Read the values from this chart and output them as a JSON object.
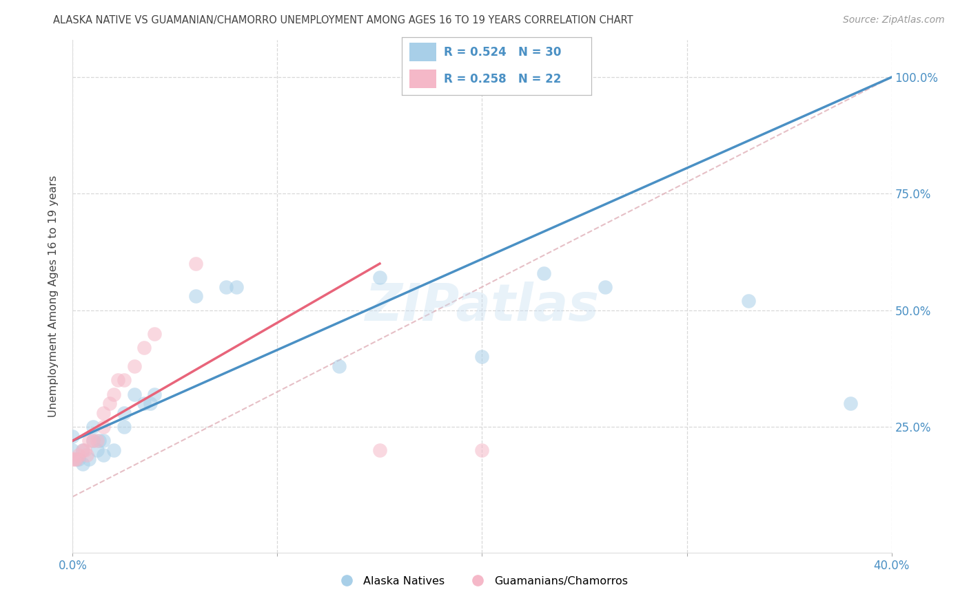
{
  "title": "ALASKA NATIVE VS GUAMANIAN/CHAMORRO UNEMPLOYMENT AMONG AGES 16 TO 19 YEARS CORRELATION CHART",
  "source": "Source: ZipAtlas.com",
  "ylabel": "Unemployment Among Ages 16 to 19 years",
  "xlim": [
    0.0,
    0.4
  ],
  "ylim": [
    -0.02,
    1.08
  ],
  "xticks": [
    0.0,
    0.1,
    0.2,
    0.3,
    0.4
  ],
  "xtick_labels": [
    "0.0%",
    "",
    "",
    "",
    "40.0%"
  ],
  "ytick_labels": [
    "25.0%",
    "50.0%",
    "75.0%",
    "100.0%"
  ],
  "ytick_values": [
    0.25,
    0.5,
    0.75,
    1.0
  ],
  "r_blue": 0.524,
  "n_blue": 30,
  "r_pink": 0.258,
  "n_pink": 22,
  "blue_color": "#a8cfe8",
  "pink_color": "#f5b8c8",
  "blue_line_color": "#4a90c4",
  "pink_line_color": "#e8647a",
  "tick_color": "#4a90c4",
  "title_color": "#444444",
  "source_color": "#999999",
  "grid_color": "#d8d8d8",
  "watermark": "ZIPatlas",
  "alaska_x": [
    0.0,
    0.0,
    0.002,
    0.003,
    0.005,
    0.005,
    0.008,
    0.01,
    0.01,
    0.012,
    0.013,
    0.015,
    0.015,
    0.02,
    0.025,
    0.025,
    0.03,
    0.035,
    0.038,
    0.04,
    0.06,
    0.075,
    0.08,
    0.13,
    0.15,
    0.2,
    0.23,
    0.26,
    0.33,
    0.38
  ],
  "alaska_y": [
    0.2,
    0.23,
    0.18,
    0.18,
    0.17,
    0.2,
    0.18,
    0.22,
    0.25,
    0.2,
    0.22,
    0.19,
    0.22,
    0.2,
    0.25,
    0.28,
    0.32,
    0.3,
    0.3,
    0.32,
    0.53,
    0.55,
    0.55,
    0.38,
    0.57,
    0.4,
    0.58,
    0.55,
    0.52,
    0.3
  ],
  "guam_x": [
    0.0,
    0.001,
    0.002,
    0.003,
    0.005,
    0.006,
    0.007,
    0.008,
    0.01,
    0.012,
    0.015,
    0.015,
    0.018,
    0.02,
    0.022,
    0.025,
    0.03,
    0.035,
    0.04,
    0.06,
    0.15,
    0.2
  ],
  "guam_y": [
    0.18,
    0.18,
    0.18,
    0.19,
    0.2,
    0.2,
    0.19,
    0.22,
    0.22,
    0.22,
    0.25,
    0.28,
    0.3,
    0.32,
    0.35,
    0.35,
    0.38,
    0.42,
    0.45,
    0.6,
    0.2,
    0.2
  ],
  "blue_line_x": [
    0.0,
    0.4
  ],
  "blue_line_y": [
    0.22,
    1.0
  ],
  "pink_line_x": [
    0.0,
    0.15
  ],
  "pink_line_y": [
    0.22,
    0.6
  ],
  "ref_line_x": [
    0.0,
    0.4
  ],
  "ref_line_y": [
    0.1,
    1.0
  ]
}
